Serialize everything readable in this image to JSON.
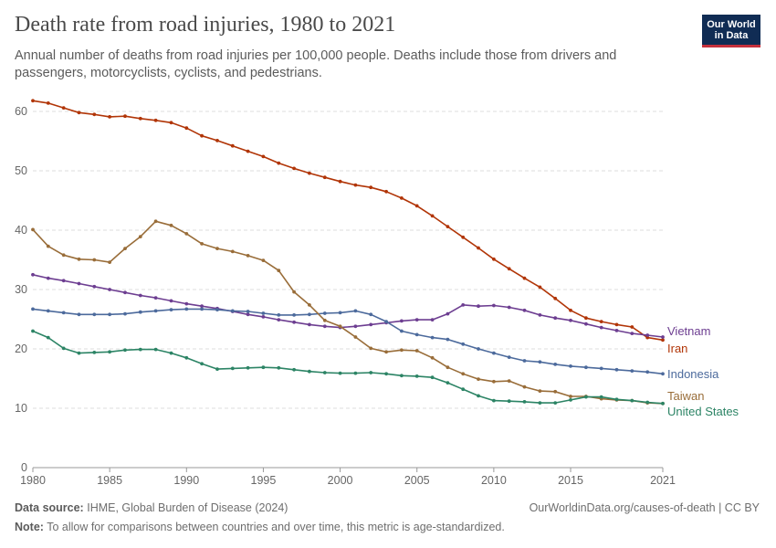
{
  "header": {
    "title": "Death rate from road injuries, 1980 to 2021",
    "subtitle": "Annual number of deaths from road injuries per 100,000 people. Deaths include those from drivers and passengers, motorcyclists, cyclists, and pedestrians.",
    "logo_line1": "Our World",
    "logo_line2": "in Data"
  },
  "footer": {
    "source_label": "Data source:",
    "source_text": "IHME, Global Burden of Disease (2024)",
    "url": "OurWorldinData.org/causes-of-death | CC BY",
    "note_label": "Note:",
    "note_text": "To allow for comparisons between countries and over time, this metric is age-standardized."
  },
  "chart_data": {
    "type": "line",
    "title": "Death rate from road injuries, 1980 to 2021",
    "xlabel": "",
    "ylabel": "",
    "xlim": [
      1980,
      2021
    ],
    "ylim": [
      0,
      60
    ],
    "x_ticks": [
      1980,
      1985,
      1990,
      1995,
      2000,
      2005,
      2010,
      2015,
      2021
    ],
    "y_ticks": [
      0,
      10,
      20,
      30,
      40,
      50,
      60
    ],
    "grid": "horizontal dashed",
    "legend": "right, labels at line ends",
    "x": [
      1980,
      1981,
      1982,
      1983,
      1984,
      1985,
      1986,
      1987,
      1988,
      1989,
      1990,
      1991,
      1992,
      1993,
      1994,
      1995,
      1996,
      1997,
      1998,
      1999,
      2000,
      2001,
      2002,
      2003,
      2004,
      2005,
      2006,
      2007,
      2008,
      2009,
      2010,
      2011,
      2012,
      2013,
      2014,
      2015,
      2016,
      2017,
      2018,
      2019,
      2020,
      2021
    ],
    "series": [
      {
        "name": "Iran",
        "color": "#b13507",
        "values": [
          61.8,
          61.4,
          60.6,
          59.8,
          59.5,
          59.1,
          59.2,
          58.8,
          58.5,
          58.1,
          57.2,
          55.9,
          55.1,
          54.2,
          53.3,
          52.4,
          51.3,
          50.4,
          49.6,
          48.9,
          48.2,
          47.6,
          47.2,
          46.5,
          45.4,
          44.1,
          42.4,
          40.6,
          38.8,
          37.0,
          35.1,
          33.5,
          31.9,
          30.4,
          28.5,
          26.5,
          25.2,
          24.6,
          24.1,
          23.7,
          21.9,
          21.5
        ]
      },
      {
        "name": "Vietnam",
        "color": "#6d3e91",
        "values": [
          32.5,
          31.9,
          31.5,
          31.0,
          30.5,
          30.0,
          29.5,
          29.0,
          28.6,
          28.1,
          27.6,
          27.2,
          26.8,
          26.3,
          25.8,
          25.4,
          24.9,
          24.5,
          24.1,
          23.8,
          23.6,
          23.8,
          24.1,
          24.4,
          24.7,
          24.9,
          24.9,
          25.9,
          27.4,
          27.2,
          27.3,
          27.0,
          26.5,
          25.7,
          25.2,
          24.8,
          24.2,
          23.6,
          23.1,
          22.6,
          22.3,
          22.0
        ]
      },
      {
        "name": "Indonesia",
        "color": "#4c6a9c",
        "values": [
          26.7,
          26.4,
          26.1,
          25.8,
          25.8,
          25.8,
          25.9,
          26.2,
          26.4,
          26.6,
          26.7,
          26.7,
          26.6,
          26.4,
          26.3,
          26.0,
          25.7,
          25.7,
          25.8,
          26.0,
          26.1,
          26.4,
          25.8,
          24.6,
          23.0,
          22.4,
          21.9,
          21.6,
          20.8,
          20.0,
          19.3,
          18.6,
          18.0,
          17.8,
          17.4,
          17.1,
          16.9,
          16.7,
          16.5,
          16.3,
          16.1,
          15.8
        ]
      },
      {
        "name": "Taiwan",
        "color": "#996d39",
        "values": [
          40.1,
          37.3,
          35.8,
          35.1,
          35.0,
          34.6,
          36.9,
          38.9,
          41.5,
          40.8,
          39.4,
          37.7,
          36.9,
          36.4,
          35.7,
          34.9,
          33.2,
          29.6,
          27.4,
          24.8,
          23.8,
          22.0,
          20.1,
          19.5,
          19.8,
          19.7,
          18.5,
          16.9,
          15.8,
          14.9,
          14.5,
          14.6,
          13.6,
          12.9,
          12.8,
          12.0,
          12.0,
          11.6,
          11.4,
          11.3,
          10.9,
          10.8
        ]
      },
      {
        "name": "United States",
        "color": "#2c8465",
        "values": [
          23.0,
          21.9,
          20.1,
          19.3,
          19.4,
          19.5,
          19.8,
          19.9,
          19.9,
          19.3,
          18.5,
          17.5,
          16.6,
          16.7,
          16.8,
          16.9,
          16.8,
          16.5,
          16.2,
          16.0,
          15.9,
          15.9,
          16.0,
          15.8,
          15.5,
          15.4,
          15.2,
          14.3,
          13.2,
          12.1,
          11.3,
          11.2,
          11.1,
          10.9,
          10.9,
          11.4,
          11.9,
          11.9,
          11.5,
          11.3,
          11.0,
          10.8
        ]
      }
    ]
  }
}
